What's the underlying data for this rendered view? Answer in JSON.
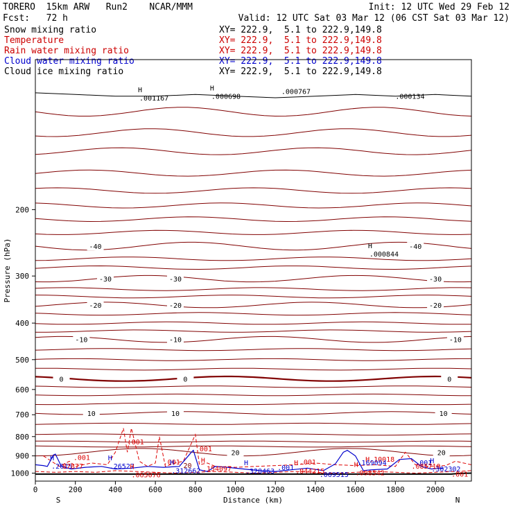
{
  "header": {
    "left_line1": "TORERO  15km ARW   Run2    NCAR/MMM",
    "left_line2": "Fcst:   72 h",
    "right_line1": "Init: 12 UTC Wed 29 Feb 12",
    "right_line2": "Valid: 12 UTC Sat 03 Mar 12 (06 CST Sat 03 Mar 12)"
  },
  "legend": [
    {
      "name": "Snow mixing ratio",
      "xy": "XY= 222.9,  5.1 to 222.9,149.8",
      "color": "#000000"
    },
    {
      "name": "Temperature",
      "xy": "XY= 222.9,  5.1 to 222.9,149.8",
      "color": "#cc0000"
    },
    {
      "name": "Rain water mixing ratio",
      "xy": "XY= 222.9,  5.1 to 222.9,149.8",
      "color": "#cc0000"
    },
    {
      "name": "Cloud water mixing ratio",
      "xy": "XY= 222.9,  5.1 to 222.9,149.8",
      "color": "#0000cc"
    },
    {
      "name": "Cloud ice mixing ratio",
      "xy": "XY= 222.9,  5.1 to 222.9,149.8",
      "color": "#000000"
    }
  ],
  "chart_data": {
    "type": "line",
    "ylabel": "Pressure (hPa)",
    "xlabel": "Distance (km)",
    "x_start_label": "S",
    "x_end_label": "N",
    "xlim": [
      0,
      2180
    ],
    "ylim": [
      1050,
      80
    ],
    "y_scale": "log",
    "x_ticks": [
      0,
      200,
      400,
      600,
      800,
      1000,
      1200,
      1400,
      1600,
      1800,
      2000
    ],
    "y_ticks": [
      200,
      300,
      400,
      500,
      600,
      700,
      800,
      900,
      1000
    ],
    "colors": {
      "temperature": "#800000",
      "rain": "#dd0000",
      "cloud_water": "#0000cc",
      "snow": "#000000",
      "ground": "#000000"
    },
    "temperature_contours": [
      {
        "value": "-40",
        "p": 250,
        "amp": 6,
        "labels": [
          {
            "x": 300,
            "text": "-40"
          },
          {
            "x": 1900,
            "text": "-40"
          }
        ]
      },
      {
        "value": "-30",
        "p": 305,
        "amp": 6,
        "labels": [
          {
            "x": 350,
            "text": "-30"
          },
          {
            "x": 700,
            "text": "-30"
          },
          {
            "x": 2000,
            "text": "-30"
          }
        ]
      },
      {
        "value": "-20",
        "p": 358,
        "amp": 6,
        "labels": [
          {
            "x": 300,
            "text": "-20"
          },
          {
            "x": 700,
            "text": "-20"
          },
          {
            "x": 2000,
            "text": "-20"
          }
        ]
      },
      {
        "value": "-10",
        "p": 442,
        "amp": 8,
        "labels": [
          {
            "x": 230,
            "text": "-10"
          },
          {
            "x": 700,
            "text": "-10"
          },
          {
            "x": 2100,
            "text": "-10"
          }
        ]
      },
      {
        "value": "0",
        "p": 562,
        "amp": 8,
        "labels": [
          {
            "x": 130,
            "text": "0"
          },
          {
            "x": 750,
            "text": "0"
          },
          {
            "x": 2070,
            "text": "0"
          }
        ]
      },
      {
        "value": "10",
        "p": 693,
        "amp": 6,
        "labels": [
          {
            "x": 280,
            "text": "10"
          },
          {
            "x": 700,
            "text": "10"
          },
          {
            "x": 2040,
            "text": "10"
          }
        ]
      },
      {
        "value": "20",
        "p": 880,
        "amp": 20,
        "labels": [
          {
            "x": 1000,
            "text": "20"
          },
          {
            "x": 2030,
            "text": "20"
          }
        ]
      }
    ],
    "extra_isotherm_levels": [
      110,
      125,
      140,
      160,
      178,
      195,
      212,
      230,
      270,
      285,
      325,
      340,
      378,
      400,
      420,
      470,
      500,
      530,
      590,
      620,
      655,
      740,
      790,
      825,
      850
    ],
    "rain_contours": [
      {
        "x": [
          40,
          120,
          170,
          200,
          280,
          360,
          400,
          440,
          460,
          480,
          520,
          560,
          600,
          620,
          650,
          700,
          740,
          800,
          820,
          860,
          900,
          1000,
          1100,
          1200,
          1300,
          1400,
          1500,
          1600,
          1700,
          1800,
          1850,
          1900,
          1950,
          2050,
          2100,
          2180
        ],
        "p": [
          900,
          960,
          930,
          960,
          940,
          950,
          880,
          760,
          880,
          760,
          930,
          960,
          940,
          800,
          960,
          940,
          930,
          790,
          950,
          940,
          960,
          965,
          960,
          955,
          950,
          940,
          950,
          955,
          950,
          960,
          880,
          950,
          960,
          955,
          930,
          950
        ]
      },
      {
        "x": [
          0,
          100,
          200,
          300,
          400,
          500,
          600,
          700,
          800,
          900,
          1000,
          1100,
          1200,
          1300,
          1400,
          1500,
          1600,
          1700,
          1800,
          1900,
          2000,
          2100,
          2180
        ],
        "p": [
          990,
          995,
          990,
          995,
          985,
          990,
          995,
          1000,
          995,
          990,
          995,
          1000,
          995,
          990,
          995,
          1000,
          995,
          990,
          995,
          1000,
          995,
          990,
          985
        ]
      }
    ],
    "cloud_water_contours": [
      {
        "x": [
          0,
          40,
          60,
          90,
          100,
          130,
          180,
          250,
          330,
          400,
          480,
          560,
          640,
          720,
          780,
          790,
          820,
          860,
          900,
          960,
          1040,
          1120,
          1200,
          1280,
          1360,
          1440,
          1500,
          1540,
          1560,
          1600,
          1640,
          1680,
          1760,
          1820,
          1880,
          1930,
          1980,
          2040
        ],
        "p": [
          950,
          955,
          960,
          895,
          890,
          960,
          975,
          965,
          960,
          975,
          970,
          960,
          965,
          960,
          880,
          870,
          980,
          990,
          960,
          965,
          975,
          985,
          990,
          980,
          970,
          985,
          945,
          880,
          870,
          900,
          985,
          980,
          975,
          920,
          915,
          960,
          975,
          970
        ]
      }
    ],
    "snow_contours": [
      {
        "x": [
          0,
          200,
          400,
          600,
          800,
          1000,
          1200,
          1400,
          1600,
          1800,
          2000,
          2180
        ],
        "p": [
          98,
          99,
          100,
          100,
          99,
          100,
          101,
          100,
          99,
          100,
          99,
          100
        ]
      }
    ],
    "ground": {
      "x": [
        0,
        2080,
        2120,
        2180
      ],
      "p": [
        1006,
        1006,
        1002,
        1000
      ]
    },
    "annotations": [
      {
        "x": 520,
        "p": 101,
        "text": ".001167",
        "color": "#000000",
        "marker": "H"
      },
      {
        "x": 880,
        "p": 100,
        "text": ".000698",
        "color": "#000000",
        "marker": "H"
      },
      {
        "x": 1230,
        "p": 97,
        "text": ".000767",
        "color": "#000000",
        "marker": ""
      },
      {
        "x": 1800,
        "p": 100,
        "text": ".000134",
        "color": "#000000",
        "marker": ""
      },
      {
        "x": 1670,
        "p": 262,
        "text": ".000844",
        "color": "#000000",
        "marker": "H"
      },
      {
        "x": 460,
        "p": 825,
        "text": ".001",
        "color": "#dd0000",
        "marker": ""
      },
      {
        "x": 800,
        "p": 860,
        "text": ".001",
        "color": "#dd0000",
        "marker": ""
      },
      {
        "x": 190,
        "p": 908,
        "text": ".001",
        "color": "#dd0000",
        "marker": ""
      },
      {
        "x": 640,
        "p": 932,
        "text": ".001",
        "color": "#dd0000",
        "marker": ""
      },
      {
        "x": 1320,
        "p": 932,
        "text": ".001",
        "color": "#dd0000",
        "marker": ""
      },
      {
        "x": 1900,
        "p": 937,
        "text": ".001",
        "color": "#0000cc",
        "marker": ""
      },
      {
        "x": 1210,
        "p": 965,
        "text": ".001",
        "color": "#0000cc",
        "marker": ""
      },
      {
        "x": 2080,
        "p": 1005,
        "text": ".001",
        "color": "#dd0000",
        "marker": ""
      },
      {
        "x": 80,
        "p": 957,
        "text": ".2625",
        "color": "#0000cc",
        "marker": "H"
      },
      {
        "x": 135,
        "p": 956,
        "text": "87877",
        "color": "#dd0000",
        "marker": ""
      },
      {
        "x": 370,
        "p": 956,
        "text": ".26527",
        "color": "#0000cc",
        "marker": "H"
      },
      {
        "x": 680,
        "p": 983,
        "text": ".312662",
        "color": "#0000cc",
        "marker": "H"
      },
      {
        "x": 835,
        "p": 970,
        "text": ".154097",
        "color": "#dd0000",
        "marker": "H"
      },
      {
        "x": 1050,
        "p": 985,
        "text": ".328463",
        "color": "#0000cc",
        "marker": "H"
      },
      {
        "x": 1300,
        "p": 985,
        "text": ".044215",
        "color": "#dd0000",
        "marker": "H"
      },
      {
        "x": 1420,
        "p": 1006,
        "text": ".069515",
        "color": "#0000cc",
        "marker": ""
      },
      {
        "x": 1600,
        "p": 996,
        "text": ".098542",
        "color": "#dd0000",
        "marker": "H"
      },
      {
        "x": 1650,
        "p": 917,
        "text": "H.10018",
        "color": "#dd0000",
        "marker": ""
      },
      {
        "x": 1610,
        "p": 937,
        "text": ".169094",
        "color": "#0000cc",
        "marker": ""
      },
      {
        "x": 1880,
        "p": 957,
        "text": ".085710",
        "color": "#dd0000",
        "marker": ""
      },
      {
        "x": 1980,
        "p": 972,
        "text": ".302302",
        "color": "#0000cc",
        "marker": "H"
      },
      {
        "x": 480,
        "p": 1008,
        "text": ".065076",
        "color": "#dd0000",
        "marker": "H"
      },
      {
        "x": 740,
        "p": 952,
        "text": "20",
        "color": "#800000",
        "marker": ""
      }
    ]
  }
}
